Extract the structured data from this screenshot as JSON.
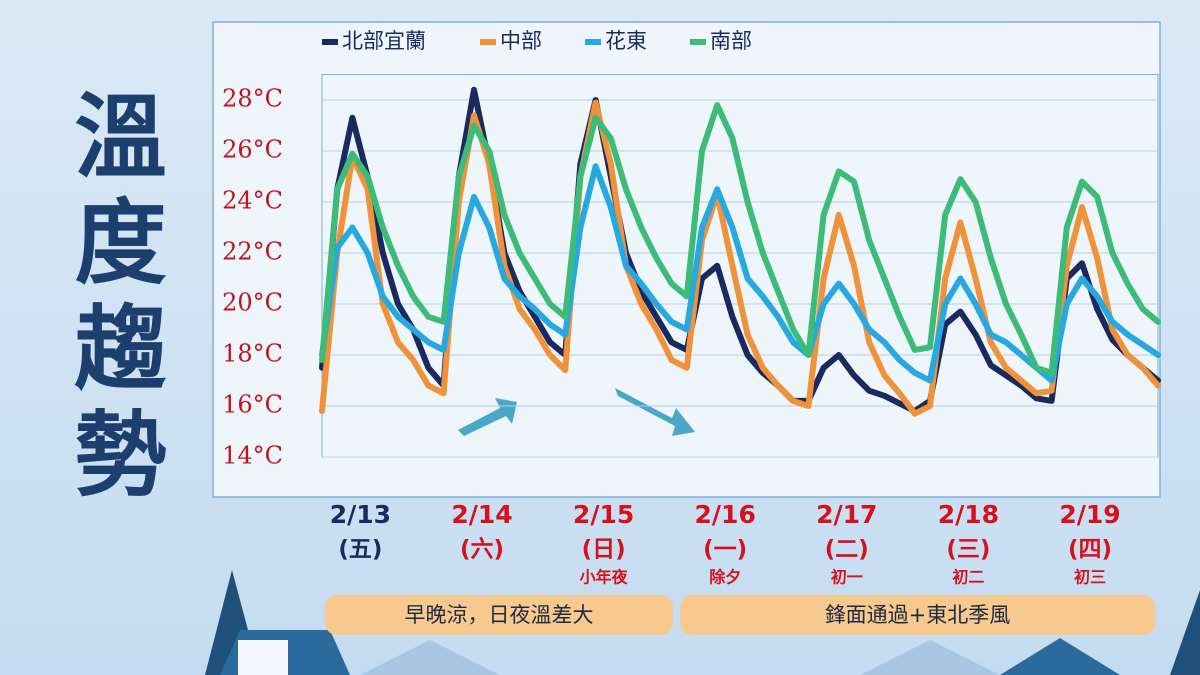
{
  "title": "溫度趨勢",
  "chart_data": {
    "type": "line",
    "categories": [
      null,
      null,
      "2/13",
      null,
      null,
      null,
      null,
      null,
      null,
      null,
      "2/14",
      null,
      null,
      null,
      null,
      null,
      null,
      null,
      "2/15",
      null,
      null,
      null,
      null,
      null,
      null,
      null,
      "2/16",
      null,
      null,
      null,
      null,
      null,
      null,
      null,
      "2/17",
      null,
      null,
      null,
      null,
      null,
      null,
      null,
      "2/18",
      null,
      null,
      null,
      null,
      null,
      null,
      null,
      "2/19",
      null,
      null,
      null,
      null,
      null
    ],
    "weekdays": [
      null,
      null,
      "(五)",
      null,
      null,
      null,
      null,
      null,
      null,
      null,
      "(六)",
      null,
      null,
      null,
      null,
      null,
      null,
      null,
      "(日)",
      null,
      null,
      null,
      null,
      null,
      null,
      null,
      "(一)",
      null,
      null,
      null,
      null,
      null,
      null,
      null,
      "(二)",
      null,
      null,
      null,
      null,
      null,
      null,
      null,
      "(三)",
      null,
      null,
      null,
      null,
      null,
      null,
      null,
      "(四)",
      null,
      null,
      null,
      null,
      null
    ],
    "notes": [
      null,
      null,
      null,
      null,
      null,
      null,
      null,
      null,
      null,
      null,
      null,
      null,
      null,
      null,
      null,
      null,
      null,
      null,
      "小年夜",
      null,
      null,
      null,
      null,
      null,
      null,
      null,
      "除夕",
      null,
      null,
      null,
      null,
      null,
      null,
      null,
      "初一",
      null,
      null,
      null,
      null,
      null,
      null,
      null,
      "初二",
      null,
      null,
      null,
      null,
      null,
      null,
      null,
      "初三",
      null,
      null,
      null,
      null,
      null
    ],
    "series": [
      {
        "name": "北部宜蘭",
        "color": "#1b2a5e",
        "values": [
          17.5,
          24.5,
          27.3,
          25,
          22,
          20,
          19,
          17.5,
          16.8,
          25,
          28.4,
          25.5,
          22,
          20.5,
          19.5,
          18.5,
          18,
          25.5,
          28,
          25,
          22,
          20.5,
          19.5,
          18.5,
          18.2,
          21,
          21.5,
          19.5,
          18,
          17.3,
          16.8,
          16.2,
          16.2,
          17.5,
          18,
          17.2,
          16.6,
          16.4,
          16.1,
          15.8,
          16.2,
          19.2,
          19.7,
          18.8,
          17.6,
          17.2,
          16.8,
          16.3,
          16.2,
          21,
          21.6,
          19.8,
          18.6,
          18,
          17.5,
          17
        ]
      },
      {
        "name": "中部",
        "color": "#f0923a",
        "values": [
          15.8,
          22,
          25.8,
          24.5,
          20,
          18.5,
          17.8,
          16.8,
          16.5,
          24,
          27.4,
          25.5,
          21.5,
          19.8,
          19,
          18,
          17.4,
          25,
          27.9,
          25.5,
          21.5,
          20,
          19,
          17.8,
          17.5,
          22.5,
          24.3,
          21.5,
          18.8,
          17.5,
          16.8,
          16.2,
          16,
          21,
          23.5,
          21.5,
          18.5,
          17.2,
          16.5,
          15.7,
          16,
          21,
          23.2,
          21,
          18.5,
          17.5,
          17,
          16.5,
          16.6,
          21.5,
          23.8,
          21.8,
          19,
          18,
          17.5,
          16.8
        ]
      },
      {
        "name": "花東",
        "color": "#27a8e0",
        "values": [
          18,
          22.2,
          23,
          22,
          20.3,
          19.5,
          19,
          18.5,
          18.2,
          22,
          24.2,
          23,
          21,
          20.3,
          19.8,
          19.2,
          18.8,
          23,
          25.4,
          23.8,
          21.5,
          20.8,
          20,
          19.3,
          19,
          23,
          24.5,
          23,
          21,
          20.3,
          19.5,
          18.5,
          18,
          20,
          20.8,
          20,
          19,
          18.5,
          17.8,
          17.3,
          17,
          20,
          21,
          20,
          18.8,
          18.5,
          18,
          17.5,
          17,
          20,
          21,
          20.3,
          19.3,
          18.8,
          18.4,
          18
        ]
      },
      {
        "name": "南部",
        "color": "#3dbb78",
        "values": [
          17.8,
          24.5,
          25.9,
          25,
          23,
          21.5,
          20.3,
          19.5,
          19.3,
          25,
          27,
          26,
          23.5,
          22,
          21,
          20,
          19.5,
          25,
          27.3,
          26.5,
          24.5,
          23,
          21.8,
          20.8,
          20.3,
          26,
          27.8,
          26.5,
          24,
          22,
          20.5,
          19,
          18,
          23.5,
          25.2,
          24.8,
          22.5,
          21,
          19.5,
          18.2,
          18.3,
          23.5,
          24.9,
          24,
          21.8,
          20,
          18.8,
          17.5,
          17.3,
          23,
          24.8,
          24.2,
          22,
          20.8,
          19.8,
          19.3
        ]
      }
    ],
    "ylim": [
      14,
      29
    ],
    "yticks": [
      {
        "value": 14,
        "label": "14°C"
      },
      {
        "value": 16,
        "label": "16°C"
      },
      {
        "value": 18,
        "label": "18°C"
      },
      {
        "value": 20,
        "label": "20°C"
      },
      {
        "value": 22,
        "label": "22°C"
      },
      {
        "value": 24,
        "label": "24°C"
      },
      {
        "value": 26,
        "label": "26°C"
      },
      {
        "value": 28,
        "label": "28°C"
      }
    ],
    "grid": true,
    "annotations": [
      "早晚涼，日夜溫差大",
      "鋒面通過+東北季風"
    ]
  }
}
